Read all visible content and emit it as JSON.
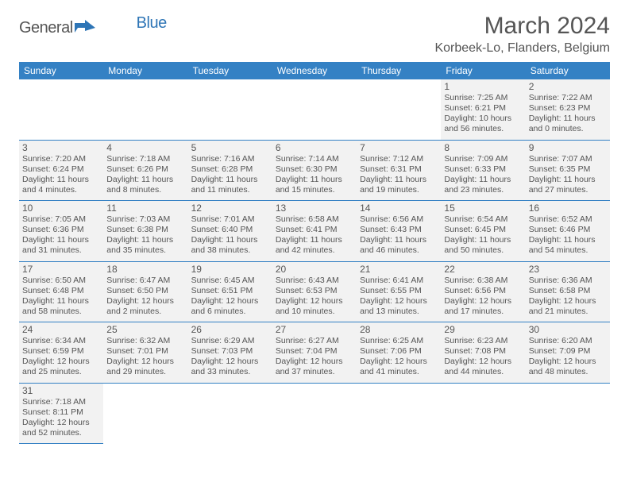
{
  "logo": {
    "brand1": "General",
    "brand2": "Blue"
  },
  "title": "March 2024",
  "location": "Korbeek-Lo, Flanders, Belgium",
  "colors": {
    "header_bg": "#3481c4",
    "header_text": "#ffffff",
    "cell_bg": "#f2f2f2",
    "text": "#555555",
    "accent": "#2e75b6"
  },
  "day_headers": [
    "Sunday",
    "Monday",
    "Tuesday",
    "Wednesday",
    "Thursday",
    "Friday",
    "Saturday"
  ],
  "weeks": [
    [
      null,
      null,
      null,
      null,
      null,
      {
        "d": "1",
        "sr": "7:25 AM",
        "ss": "6:21 PM",
        "dl": "10 hours and 56 minutes."
      },
      {
        "d": "2",
        "sr": "7:22 AM",
        "ss": "6:23 PM",
        "dl": "11 hours and 0 minutes."
      }
    ],
    [
      {
        "d": "3",
        "sr": "7:20 AM",
        "ss": "6:24 PM",
        "dl": "11 hours and 4 minutes."
      },
      {
        "d": "4",
        "sr": "7:18 AM",
        "ss": "6:26 PM",
        "dl": "11 hours and 8 minutes."
      },
      {
        "d": "5",
        "sr": "7:16 AM",
        "ss": "6:28 PM",
        "dl": "11 hours and 11 minutes."
      },
      {
        "d": "6",
        "sr": "7:14 AM",
        "ss": "6:30 PM",
        "dl": "11 hours and 15 minutes."
      },
      {
        "d": "7",
        "sr": "7:12 AM",
        "ss": "6:31 PM",
        "dl": "11 hours and 19 minutes."
      },
      {
        "d": "8",
        "sr": "7:09 AM",
        "ss": "6:33 PM",
        "dl": "11 hours and 23 minutes."
      },
      {
        "d": "9",
        "sr": "7:07 AM",
        "ss": "6:35 PM",
        "dl": "11 hours and 27 minutes."
      }
    ],
    [
      {
        "d": "10",
        "sr": "7:05 AM",
        "ss": "6:36 PM",
        "dl": "11 hours and 31 minutes."
      },
      {
        "d": "11",
        "sr": "7:03 AM",
        "ss": "6:38 PM",
        "dl": "11 hours and 35 minutes."
      },
      {
        "d": "12",
        "sr": "7:01 AM",
        "ss": "6:40 PM",
        "dl": "11 hours and 38 minutes."
      },
      {
        "d": "13",
        "sr": "6:58 AM",
        "ss": "6:41 PM",
        "dl": "11 hours and 42 minutes."
      },
      {
        "d": "14",
        "sr": "6:56 AM",
        "ss": "6:43 PM",
        "dl": "11 hours and 46 minutes."
      },
      {
        "d": "15",
        "sr": "6:54 AM",
        "ss": "6:45 PM",
        "dl": "11 hours and 50 minutes."
      },
      {
        "d": "16",
        "sr": "6:52 AM",
        "ss": "6:46 PM",
        "dl": "11 hours and 54 minutes."
      }
    ],
    [
      {
        "d": "17",
        "sr": "6:50 AM",
        "ss": "6:48 PM",
        "dl": "11 hours and 58 minutes."
      },
      {
        "d": "18",
        "sr": "6:47 AM",
        "ss": "6:50 PM",
        "dl": "12 hours and 2 minutes."
      },
      {
        "d": "19",
        "sr": "6:45 AM",
        "ss": "6:51 PM",
        "dl": "12 hours and 6 minutes."
      },
      {
        "d": "20",
        "sr": "6:43 AM",
        "ss": "6:53 PM",
        "dl": "12 hours and 10 minutes."
      },
      {
        "d": "21",
        "sr": "6:41 AM",
        "ss": "6:55 PM",
        "dl": "12 hours and 13 minutes."
      },
      {
        "d": "22",
        "sr": "6:38 AM",
        "ss": "6:56 PM",
        "dl": "12 hours and 17 minutes."
      },
      {
        "d": "23",
        "sr": "6:36 AM",
        "ss": "6:58 PM",
        "dl": "12 hours and 21 minutes."
      }
    ],
    [
      {
        "d": "24",
        "sr": "6:34 AM",
        "ss": "6:59 PM",
        "dl": "12 hours and 25 minutes."
      },
      {
        "d": "25",
        "sr": "6:32 AM",
        "ss": "7:01 PM",
        "dl": "12 hours and 29 minutes."
      },
      {
        "d": "26",
        "sr": "6:29 AM",
        "ss": "7:03 PM",
        "dl": "12 hours and 33 minutes."
      },
      {
        "d": "27",
        "sr": "6:27 AM",
        "ss": "7:04 PM",
        "dl": "12 hours and 37 minutes."
      },
      {
        "d": "28",
        "sr": "6:25 AM",
        "ss": "7:06 PM",
        "dl": "12 hours and 41 minutes."
      },
      {
        "d": "29",
        "sr": "6:23 AM",
        "ss": "7:08 PM",
        "dl": "12 hours and 44 minutes."
      },
      {
        "d": "30",
        "sr": "6:20 AM",
        "ss": "7:09 PM",
        "dl": "12 hours and 48 minutes."
      }
    ],
    [
      {
        "d": "31",
        "sr": "7:18 AM",
        "ss": "8:11 PM",
        "dl": "12 hours and 52 minutes."
      },
      null,
      null,
      null,
      null,
      null,
      null
    ]
  ],
  "labels": {
    "sunrise": "Sunrise:",
    "sunset": "Sunset:",
    "daylight": "Daylight:"
  }
}
